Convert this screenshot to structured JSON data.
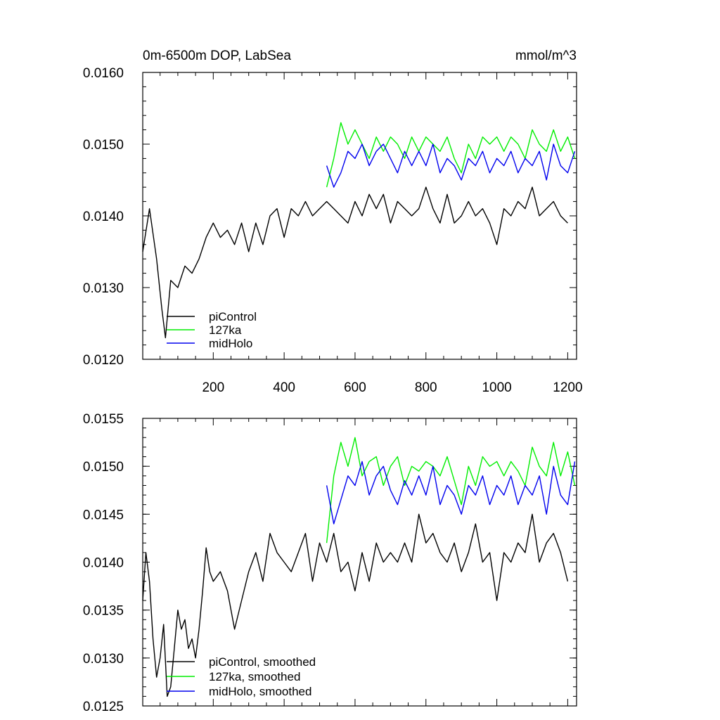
{
  "chart_data": [
    {
      "type": "line",
      "title_left": "0m-6500m DOP, LabSea",
      "title_right": "mmol/m^3",
      "xlabel": "",
      "ylabel": "",
      "xlim": [
        1,
        1225
      ],
      "ylim": [
        0.012,
        0.016
      ],
      "xticks": [
        200,
        400,
        600,
        800,
        1000,
        1200
      ],
      "xtick_labels": [
        "200",
        "400",
        "600",
        "800",
        "1000",
        "1200"
      ],
      "yticks": [
        0.012,
        0.013,
        0.014,
        0.015,
        0.016
      ],
      "ytick_labels": [
        "0.0120",
        "0.0130",
        "0.0140",
        "0.0150",
        "0.0160"
      ],
      "legend": [
        "piControl",
        "127ka",
        "midHolo"
      ],
      "series": [
        {
          "name": "piControl",
          "color": "#000000",
          "x": [
            1,
            20,
            40,
            55,
            65,
            80,
            100,
            120,
            140,
            160,
            180,
            200,
            220,
            240,
            260,
            280,
            300,
            320,
            340,
            360,
            380,
            400,
            420,
            440,
            460,
            480,
            500,
            520,
            540,
            560,
            580,
            600,
            620,
            640,
            660,
            680,
            700,
            720,
            740,
            760,
            780,
            800,
            820,
            840,
            860,
            880,
            900,
            920,
            940,
            960,
            980,
            1000,
            1020,
            1040,
            1060,
            1080,
            1100,
            1120,
            1140,
            1160,
            1180,
            1200
          ],
          "values": [
            0.0135,
            0.0141,
            0.0134,
            0.0127,
            0.0123,
            0.0131,
            0.013,
            0.0133,
            0.0132,
            0.0134,
            0.0137,
            0.0139,
            0.0137,
            0.0138,
            0.0136,
            0.0139,
            0.0135,
            0.0139,
            0.0136,
            0.014,
            0.0141,
            0.0137,
            0.0141,
            0.014,
            0.0142,
            0.014,
            0.0141,
            0.0142,
            0.0141,
            0.014,
            0.0139,
            0.0142,
            0.014,
            0.0143,
            0.0141,
            0.0143,
            0.0139,
            0.0142,
            0.0141,
            0.014,
            0.0141,
            0.0144,
            0.0141,
            0.0139,
            0.0143,
            0.0139,
            0.014,
            0.0142,
            0.014,
            0.0141,
            0.0139,
            0.0136,
            0.0141,
            0.014,
            0.0142,
            0.0141,
            0.0144,
            0.014,
            0.0141,
            0.0142,
            0.014,
            0.0139
          ]
        },
        {
          "name": "127ka",
          "color": "#00ee00",
          "x": [
            520,
            540,
            560,
            580,
            600,
            620,
            640,
            660,
            680,
            700,
            720,
            740,
            760,
            780,
            800,
            820,
            840,
            860,
            880,
            900,
            920,
            940,
            960,
            980,
            1000,
            1020,
            1040,
            1060,
            1080,
            1100,
            1120,
            1140,
            1160,
            1180,
            1200,
            1220
          ],
          "values": [
            0.0144,
            0.0148,
            0.0153,
            0.015,
            0.0152,
            0.015,
            0.0148,
            0.0151,
            0.0149,
            0.0151,
            0.015,
            0.0148,
            0.0151,
            0.0149,
            0.0151,
            0.015,
            0.0149,
            0.0151,
            0.0148,
            0.0146,
            0.015,
            0.0148,
            0.0151,
            0.015,
            0.0151,
            0.0149,
            0.0151,
            0.015,
            0.0148,
            0.0152,
            0.015,
            0.0149,
            0.0152,
            0.0149,
            0.0151,
            0.0148
          ]
        },
        {
          "name": "midHolo",
          "color": "#0000ee",
          "x": [
            520,
            540,
            560,
            580,
            600,
            620,
            640,
            660,
            680,
            700,
            720,
            740,
            760,
            780,
            800,
            820,
            840,
            860,
            880,
            900,
            920,
            940,
            960,
            980,
            1000,
            1020,
            1040,
            1060,
            1080,
            1100,
            1120,
            1140,
            1160,
            1180,
            1200,
            1220
          ],
          "values": [
            0.0147,
            0.0144,
            0.0146,
            0.0149,
            0.0148,
            0.015,
            0.0147,
            0.0149,
            0.015,
            0.0148,
            0.0146,
            0.0149,
            0.0147,
            0.0149,
            0.0147,
            0.015,
            0.0146,
            0.0148,
            0.0147,
            0.0145,
            0.0148,
            0.0147,
            0.0149,
            0.0146,
            0.0148,
            0.0147,
            0.0149,
            0.0146,
            0.0148,
            0.0147,
            0.0149,
            0.0145,
            0.015,
            0.0147,
            0.0146,
            0.0149
          ]
        }
      ]
    },
    {
      "type": "line",
      "xlim": [
        1,
        1225
      ],
      "ylim": [
        0.0125,
        0.0155
      ],
      "xticks": [
        200,
        400,
        600,
        800,
        1000,
        1200
      ],
      "yticks": [
        0.0125,
        0.013,
        0.0135,
        0.014,
        0.0145,
        0.015,
        0.0155
      ],
      "ytick_labels": [
        "0.0125",
        "0.0130",
        "0.0135",
        "0.0140",
        "0.0145",
        "0.0150",
        "0.0155"
      ],
      "legend": [
        "piControl, smoothed",
        "127ka, smoothed",
        "midHolo, smoothed"
      ],
      "series": [
        {
          "name": "piControl, smoothed",
          "color": "#000000",
          "x": [
            1,
            10,
            20,
            30,
            40,
            50,
            60,
            70,
            80,
            90,
            100,
            110,
            120,
            130,
            140,
            150,
            160,
            170,
            180,
            190,
            200,
            220,
            240,
            260,
            280,
            300,
            320,
            340,
            360,
            380,
            400,
            420,
            440,
            460,
            480,
            500,
            520,
            540,
            560,
            580,
            600,
            620,
            640,
            660,
            680,
            700,
            720,
            740,
            760,
            780,
            800,
            820,
            840,
            860,
            880,
            900,
            920,
            940,
            960,
            980,
            1000,
            1020,
            1040,
            1060,
            1080,
            1100,
            1120,
            1140,
            1160,
            1180,
            1200
          ],
          "values": [
            0.0136,
            0.0141,
            0.0138,
            0.0132,
            0.0128,
            0.013,
            0.01335,
            0.0126,
            0.0127,
            0.0131,
            0.0135,
            0.0133,
            0.0134,
            0.0131,
            0.0132,
            0.013,
            0.0133,
            0.0137,
            0.01415,
            0.0139,
            0.0138,
            0.0139,
            0.0137,
            0.0133,
            0.0136,
            0.0139,
            0.0141,
            0.0138,
            0.0143,
            0.0141,
            0.014,
            0.0139,
            0.0141,
            0.0143,
            0.0138,
            0.0142,
            0.014,
            0.0143,
            0.0139,
            0.014,
            0.0137,
            0.0141,
            0.0138,
            0.0142,
            0.014,
            0.0141,
            0.014,
            0.0142,
            0.014,
            0.0145,
            0.0142,
            0.0143,
            0.0141,
            0.014,
            0.0142,
            0.0139,
            0.0141,
            0.0144,
            0.014,
            0.0141,
            0.0136,
            0.0141,
            0.014,
            0.0142,
            0.0141,
            0.0145,
            0.014,
            0.0142,
            0.0143,
            0.0141,
            0.0138
          ]
        },
        {
          "name": "127ka, smoothed",
          "color": "#00ee00",
          "x": [
            520,
            540,
            560,
            580,
            600,
            620,
            640,
            660,
            680,
            700,
            720,
            740,
            760,
            780,
            800,
            820,
            840,
            860,
            880,
            900,
            920,
            940,
            960,
            980,
            1000,
            1020,
            1040,
            1060,
            1080,
            1100,
            1120,
            1140,
            1160,
            1180,
            1200,
            1220
          ],
          "values": [
            0.0142,
            0.0149,
            0.01525,
            0.015,
            0.0153,
            0.0149,
            0.01505,
            0.0151,
            0.0148,
            0.015,
            0.0151,
            0.0148,
            0.015,
            0.01495,
            0.01505,
            0.015,
            0.0149,
            0.0151,
            0.01485,
            0.0146,
            0.015,
            0.0148,
            0.0151,
            0.015,
            0.01505,
            0.0149,
            0.01505,
            0.01495,
            0.0148,
            0.0152,
            0.015,
            0.0149,
            0.01525,
            0.0149,
            0.01515,
            0.0148
          ]
        },
        {
          "name": "midHolo, smoothed",
          "color": "#0000ee",
          "x": [
            520,
            540,
            560,
            580,
            600,
            620,
            640,
            660,
            680,
            700,
            720,
            740,
            760,
            780,
            800,
            820,
            840,
            860,
            880,
            900,
            920,
            940,
            960,
            980,
            1000,
            1020,
            1040,
            1060,
            1080,
            1100,
            1120,
            1140,
            1160,
            1180,
            1200,
            1220
          ],
          "values": [
            0.0148,
            0.0144,
            0.01465,
            0.0149,
            0.0148,
            0.01505,
            0.0147,
            0.0149,
            0.015,
            0.01475,
            0.0146,
            0.01485,
            0.0147,
            0.0149,
            0.0147,
            0.015,
            0.0146,
            0.0148,
            0.0147,
            0.0145,
            0.0148,
            0.0147,
            0.0149,
            0.0146,
            0.0148,
            0.0147,
            0.0149,
            0.0146,
            0.0148,
            0.0147,
            0.0149,
            0.0145,
            0.015,
            0.0147,
            0.0146,
            0.01505
          ]
        }
      ]
    }
  ]
}
